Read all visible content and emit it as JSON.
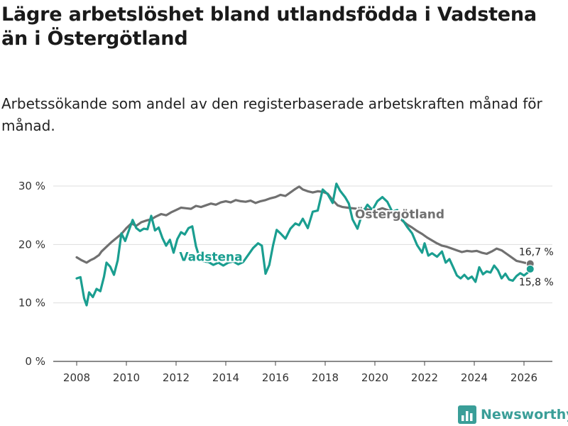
{
  "header": {
    "title": "Lägre arbetslöshet bland utlandsfödda i Vadstena än i Östergötland",
    "subtitle": "Arbetssökande som andel av den registerbaserade arbetskraften månad för månad."
  },
  "brand": {
    "name": "Newsworthy",
    "icon": "bar-chart-icon",
    "color": "#3a9e98"
  },
  "chart_data": {
    "type": "line",
    "title": "",
    "xlabel": "",
    "ylabel": "",
    "xlim": [
      2007.5,
      2026.6
    ],
    "ylim": [
      0,
      30
    ],
    "y_ticks": [
      0,
      10,
      20,
      30
    ],
    "y_tick_labels": [
      "0 %",
      "10 %",
      "20 %",
      "30 %"
    ],
    "x_ticks": [
      2008,
      2010,
      2012,
      2014,
      2016,
      2018,
      2020,
      2022,
      2024,
      2026
    ],
    "x_tick_labels": [
      "2008",
      "2010",
      "2012",
      "2014",
      "2016",
      "2018",
      "2020",
      "2022",
      "2024",
      "2026"
    ],
    "grid": "horizontal",
    "series": [
      {
        "name": "Östergötland",
        "color": "#707070",
        "end_label": "16,7 %",
        "points": [
          [
            2008.0,
            17.8
          ],
          [
            2008.2,
            17.3
          ],
          [
            2008.4,
            16.9
          ],
          [
            2008.55,
            17.3
          ],
          [
            2008.7,
            17.6
          ],
          [
            2008.9,
            18.2
          ],
          [
            2009.0,
            18.8
          ],
          [
            2009.2,
            19.6
          ],
          [
            2009.4,
            20.4
          ],
          [
            2009.6,
            21.1
          ],
          [
            2009.8,
            21.8
          ],
          [
            2010.0,
            22.8
          ],
          [
            2010.2,
            23.6
          ],
          [
            2010.4,
            23.2
          ],
          [
            2010.6,
            23.8
          ],
          [
            2010.8,
            24.1
          ],
          [
            2011.0,
            24.3
          ],
          [
            2011.2,
            24.8
          ],
          [
            2011.4,
            25.2
          ],
          [
            2011.6,
            25.0
          ],
          [
            2011.8,
            25.5
          ],
          [
            2012.0,
            25.9
          ],
          [
            2012.2,
            26.3
          ],
          [
            2012.4,
            26.2
          ],
          [
            2012.6,
            26.1
          ],
          [
            2012.8,
            26.6
          ],
          [
            2013.0,
            26.4
          ],
          [
            2013.2,
            26.7
          ],
          [
            2013.4,
            27.0
          ],
          [
            2013.6,
            26.8
          ],
          [
            2013.8,
            27.2
          ],
          [
            2014.0,
            27.4
          ],
          [
            2014.2,
            27.2
          ],
          [
            2014.4,
            27.6
          ],
          [
            2014.6,
            27.4
          ],
          [
            2014.8,
            27.3
          ],
          [
            2015.0,
            27.5
          ],
          [
            2015.2,
            27.1
          ],
          [
            2015.4,
            27.4
          ],
          [
            2015.6,
            27.6
          ],
          [
            2015.8,
            27.9
          ],
          [
            2016.0,
            28.1
          ],
          [
            2016.2,
            28.5
          ],
          [
            2016.4,
            28.3
          ],
          [
            2016.6,
            28.9
          ],
          [
            2016.8,
            29.5
          ],
          [
            2016.95,
            29.9
          ],
          [
            2017.1,
            29.4
          ],
          [
            2017.3,
            29.1
          ],
          [
            2017.5,
            28.9
          ],
          [
            2017.7,
            29.1
          ],
          [
            2017.9,
            29.0
          ],
          [
            2018.1,
            28.7
          ],
          [
            2018.3,
            27.6
          ],
          [
            2018.5,
            26.7
          ],
          [
            2018.7,
            26.4
          ],
          [
            2018.9,
            26.3
          ],
          [
            2019.1,
            26.2
          ],
          [
            2019.3,
            26.1
          ],
          [
            2019.5,
            26.0
          ],
          [
            2019.7,
            26.0
          ],
          [
            2019.9,
            25.8
          ],
          [
            2020.1,
            25.9
          ],
          [
            2020.3,
            26.2
          ],
          [
            2020.5,
            25.9
          ],
          [
            2020.7,
            25.6
          ],
          [
            2020.9,
            25.0
          ],
          [
            2021.1,
            24.1
          ],
          [
            2021.3,
            23.4
          ],
          [
            2021.5,
            22.9
          ],
          [
            2021.7,
            22.3
          ],
          [
            2021.9,
            21.8
          ],
          [
            2022.1,
            21.2
          ],
          [
            2022.3,
            20.7
          ],
          [
            2022.5,
            20.2
          ],
          [
            2022.7,
            19.8
          ],
          [
            2022.9,
            19.6
          ],
          [
            2023.1,
            19.3
          ],
          [
            2023.3,
            19.0
          ],
          [
            2023.5,
            18.7
          ],
          [
            2023.7,
            18.9
          ],
          [
            2023.9,
            18.8
          ],
          [
            2024.1,
            18.9
          ],
          [
            2024.3,
            18.6
          ],
          [
            2024.5,
            18.4
          ],
          [
            2024.7,
            18.8
          ],
          [
            2024.9,
            19.3
          ],
          [
            2025.1,
            19.0
          ],
          [
            2025.3,
            18.4
          ],
          [
            2025.5,
            17.8
          ],
          [
            2025.7,
            17.2
          ],
          [
            2025.9,
            17.0
          ],
          [
            2026.1,
            16.8
          ],
          [
            2026.25,
            16.7
          ]
        ]
      },
      {
        "name": "Vadstena",
        "color": "#1a9e90",
        "end_label": "15,8 %",
        "points": [
          [
            2008.0,
            14.2
          ],
          [
            2008.15,
            14.4
          ],
          [
            2008.3,
            10.8
          ],
          [
            2008.4,
            9.6
          ],
          [
            2008.5,
            11.8
          ],
          [
            2008.65,
            11.0
          ],
          [
            2008.8,
            12.4
          ],
          [
            2008.95,
            12.0
          ],
          [
            2009.1,
            14.5
          ],
          [
            2009.2,
            16.9
          ],
          [
            2009.35,
            16.2
          ],
          [
            2009.5,
            14.8
          ],
          [
            2009.65,
            17.3
          ],
          [
            2009.8,
            21.9
          ],
          [
            2009.95,
            20.6
          ],
          [
            2010.1,
            22.4
          ],
          [
            2010.25,
            24.2
          ],
          [
            2010.4,
            22.8
          ],
          [
            2010.55,
            22.3
          ],
          [
            2010.7,
            22.7
          ],
          [
            2010.85,
            22.6
          ],
          [
            2011.0,
            24.9
          ],
          [
            2011.15,
            22.4
          ],
          [
            2011.3,
            22.9
          ],
          [
            2011.45,
            21.1
          ],
          [
            2011.6,
            19.8
          ],
          [
            2011.75,
            20.8
          ],
          [
            2011.9,
            18.6
          ],
          [
            2012.05,
            20.9
          ],
          [
            2012.2,
            22.1
          ],
          [
            2012.35,
            21.7
          ],
          [
            2012.5,
            22.8
          ],
          [
            2012.65,
            23.1
          ],
          [
            2012.8,
            19.7
          ],
          [
            2012.95,
            17.6
          ],
          [
            2013.1,
            17.1
          ],
          [
            2013.3,
            17.0
          ],
          [
            2013.5,
            16.5
          ],
          [
            2013.7,
            16.9
          ],
          [
            2013.9,
            16.4
          ],
          [
            2014.1,
            16.9
          ],
          [
            2014.3,
            17.1
          ],
          [
            2014.5,
            16.6
          ],
          [
            2014.7,
            17.0
          ],
          [
            2014.9,
            18.2
          ],
          [
            2015.1,
            19.4
          ],
          [
            2015.3,
            20.2
          ],
          [
            2015.45,
            19.8
          ],
          [
            2015.6,
            15.0
          ],
          [
            2015.75,
            16.5
          ],
          [
            2015.9,
            19.8
          ],
          [
            2016.05,
            22.5
          ],
          [
            2016.2,
            21.9
          ],
          [
            2016.4,
            21.0
          ],
          [
            2016.6,
            22.7
          ],
          [
            2016.8,
            23.6
          ],
          [
            2016.95,
            23.3
          ],
          [
            2017.1,
            24.4
          ],
          [
            2017.3,
            22.8
          ],
          [
            2017.5,
            25.6
          ],
          [
            2017.7,
            25.8
          ],
          [
            2017.9,
            29.4
          ],
          [
            2018.1,
            28.6
          ],
          [
            2018.3,
            27.1
          ],
          [
            2018.45,
            30.4
          ],
          [
            2018.6,
            29.2
          ],
          [
            2018.8,
            28.1
          ],
          [
            2018.95,
            27.0
          ],
          [
            2019.1,
            24.3
          ],
          [
            2019.3,
            22.7
          ],
          [
            2019.5,
            25.4
          ],
          [
            2019.7,
            26.8
          ],
          [
            2019.9,
            25.9
          ],
          [
            2020.1,
            27.4
          ],
          [
            2020.3,
            28.1
          ],
          [
            2020.5,
            27.3
          ],
          [
            2020.7,
            25.6
          ],
          [
            2020.9,
            25.9
          ],
          [
            2021.1,
            24.3
          ],
          [
            2021.3,
            23.0
          ],
          [
            2021.5,
            21.9
          ],
          [
            2021.7,
            19.9
          ],
          [
            2021.9,
            18.6
          ],
          [
            2022.0,
            20.2
          ],
          [
            2022.15,
            18.1
          ],
          [
            2022.3,
            18.5
          ],
          [
            2022.5,
            17.9
          ],
          [
            2022.7,
            18.8
          ],
          [
            2022.85,
            16.9
          ],
          [
            2023.0,
            17.5
          ],
          [
            2023.15,
            16.1
          ],
          [
            2023.3,
            14.7
          ],
          [
            2023.45,
            14.2
          ],
          [
            2023.6,
            14.8
          ],
          [
            2023.75,
            14.1
          ],
          [
            2023.9,
            14.5
          ],
          [
            2024.05,
            13.6
          ],
          [
            2024.2,
            16.1
          ],
          [
            2024.35,
            14.9
          ],
          [
            2024.5,
            15.4
          ],
          [
            2024.65,
            15.2
          ],
          [
            2024.8,
            16.4
          ],
          [
            2024.95,
            15.6
          ],
          [
            2025.1,
            14.2
          ],
          [
            2025.25,
            15.0
          ],
          [
            2025.4,
            14.0
          ],
          [
            2025.55,
            13.8
          ],
          [
            2025.7,
            14.6
          ],
          [
            2025.85,
            15.1
          ],
          [
            2026.0,
            14.7
          ],
          [
            2026.15,
            15.2
          ],
          [
            2026.25,
            15.8
          ]
        ]
      }
    ],
    "annotations": [
      {
        "text": "Vadstena",
        "series": "Vadstena"
      },
      {
        "text": "Östergötland",
        "series": "Östergötland"
      }
    ]
  }
}
